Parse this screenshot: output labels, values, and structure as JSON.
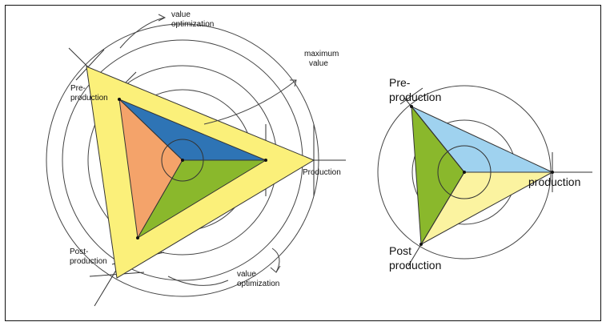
{
  "left": {
    "labels": {
      "value_opt_top_1": "value",
      "value_opt_top_2": "optimization",
      "max_value_1": "maximum",
      "max_value_2": "value",
      "pre_1": "Pre-",
      "pre_2": "production",
      "production": "Production",
      "post_1": "Post-",
      "post_2": "production",
      "value_opt_bottom_1": "value",
      "value_opt_bottom_2": "optimization"
    },
    "colors": {
      "outer": "#fbf07a",
      "blue": "#2e74b5",
      "salmon": "#f4a36a",
      "green": "#8ab82c",
      "line": "#333333"
    }
  },
  "right": {
    "labels": {
      "pre_1": "Pre-",
      "pre_2": "production",
      "production": "production",
      "post_1": "Post",
      "post_2": "production"
    },
    "colors": {
      "blue": "#9fd2ef",
      "yellow": "#fbf3a0",
      "green": "#8ab82c",
      "line": "#333333"
    }
  }
}
